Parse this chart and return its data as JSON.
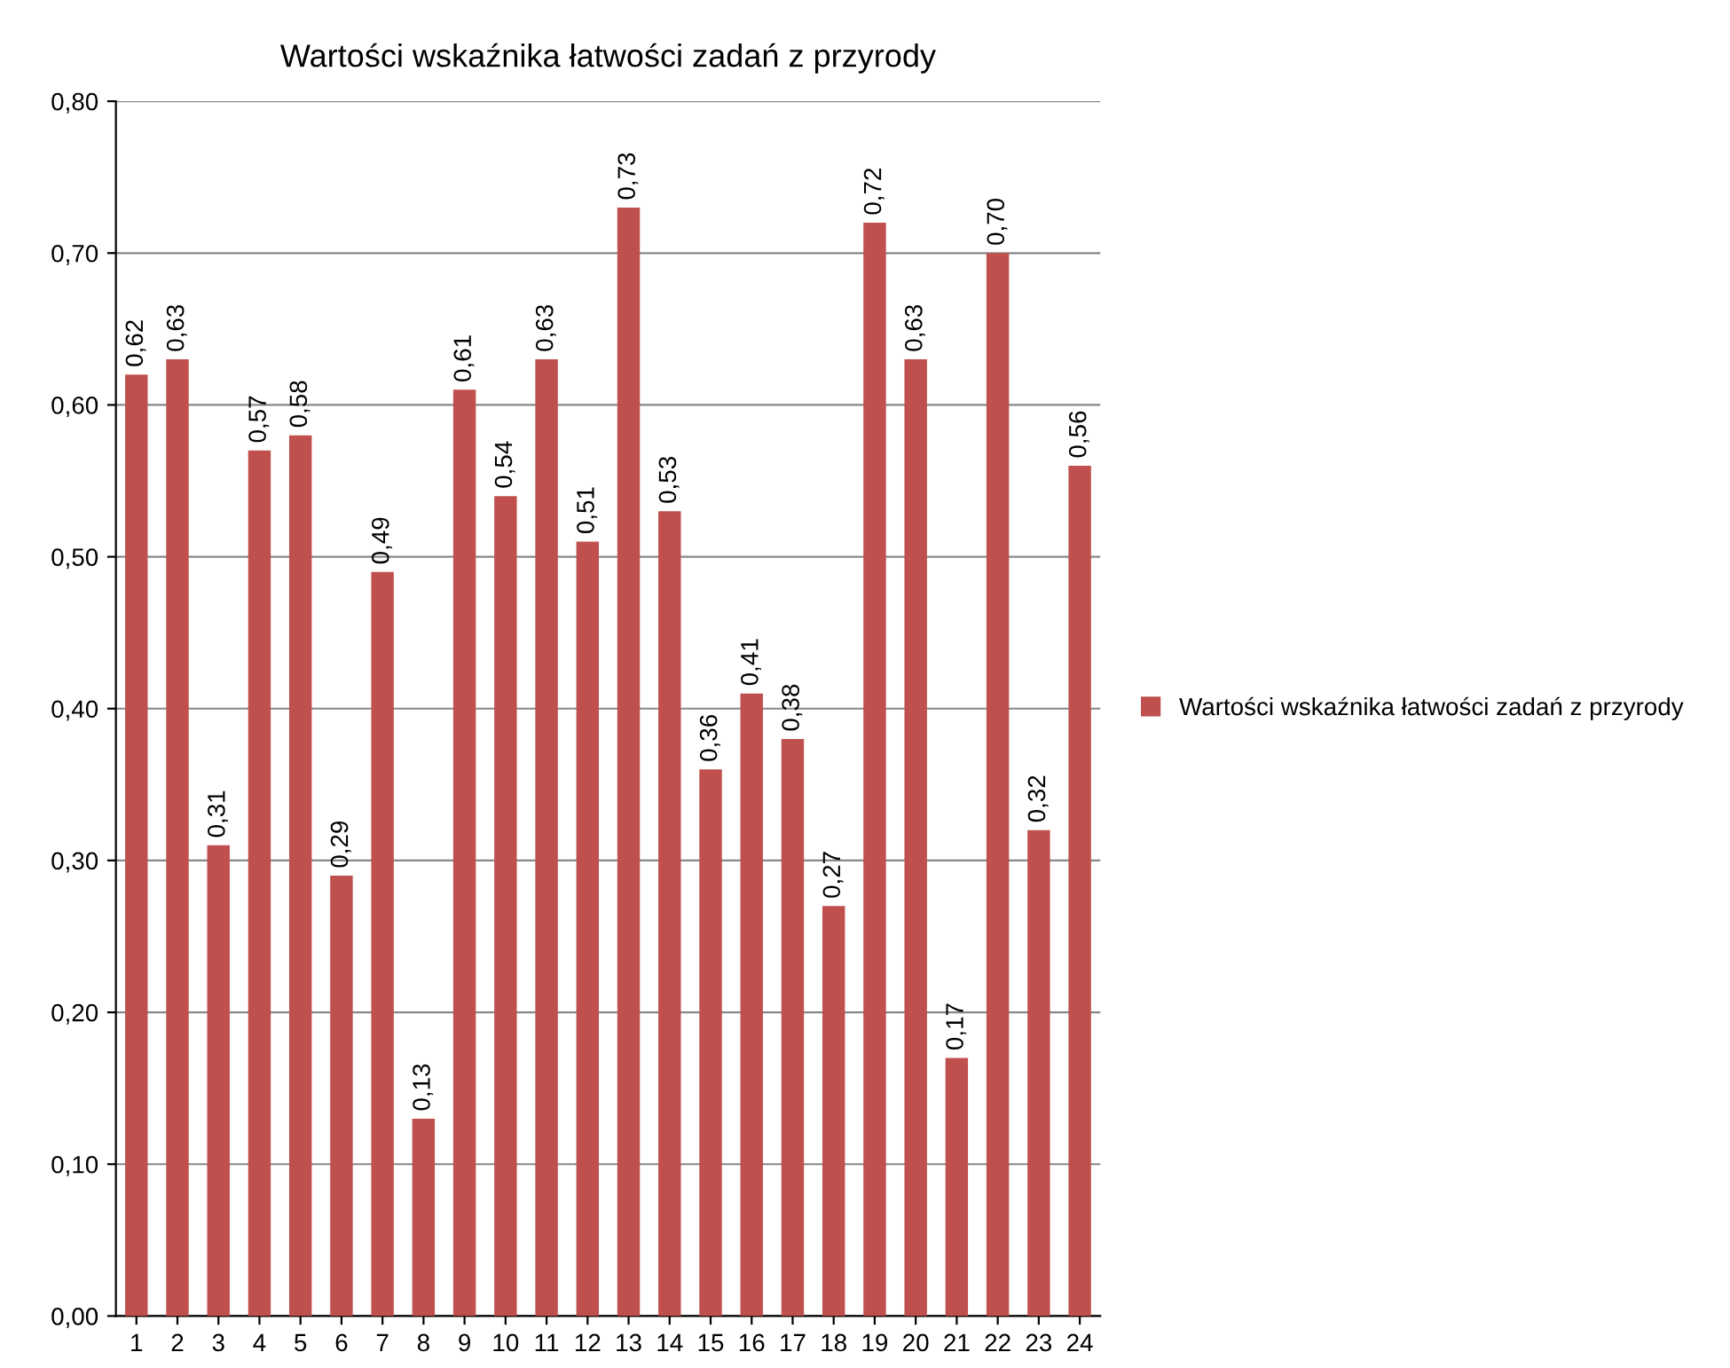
{
  "chart_data": {
    "type": "bar",
    "title": "Wartości wskaźnika łatwości zadań z przyrody",
    "categories": [
      "1",
      "2",
      "3",
      "4",
      "5",
      "6",
      "7",
      "8",
      "9",
      "10",
      "11",
      "12",
      "13",
      "14",
      "15",
      "16",
      "17",
      "18",
      "19",
      "20",
      "21",
      "22",
      "23",
      "24"
    ],
    "series": [
      {
        "name": "Wartości wskaźnika łatwości zadań z przyrody",
        "color": "#c0504d",
        "values": [
          0.62,
          0.63,
          0.31,
          0.57,
          0.58,
          0.29,
          0.49,
          0.13,
          0.61,
          0.54,
          0.63,
          0.51,
          0.73,
          0.53,
          0.36,
          0.41,
          0.38,
          0.27,
          0.72,
          0.63,
          0.17,
          0.7,
          0.32,
          0.56
        ],
        "value_labels": [
          "0,62",
          "0,63",
          "0,31",
          "0,57",
          "0,58",
          "0,29",
          "0,49",
          "0,13",
          "0,61",
          "0,54",
          "0,63",
          "0,51",
          "0,73",
          "0,53",
          "0,36",
          "0,41",
          "0,38",
          "0,27",
          "0,72",
          "0,63",
          "0,17",
          "0,70",
          "0,32",
          "0,56"
        ]
      }
    ],
    "ylim": [
      0,
      0.8
    ],
    "yticks": [
      {
        "value": 0,
        "label": "0,00"
      },
      {
        "value": 0.1,
        "label": "0,10"
      },
      {
        "value": 0.2,
        "label": "0,20"
      },
      {
        "value": 0.3,
        "label": "0,30"
      },
      {
        "value": 0.4,
        "label": "0,40"
      },
      {
        "value": 0.5,
        "label": "0,50"
      },
      {
        "value": 0.6,
        "label": "0,60"
      },
      {
        "value": 0.7,
        "label": "0,70"
      },
      {
        "value": 0.8,
        "label": "0,80"
      }
    ],
    "grid": "y",
    "legend": "right"
  }
}
